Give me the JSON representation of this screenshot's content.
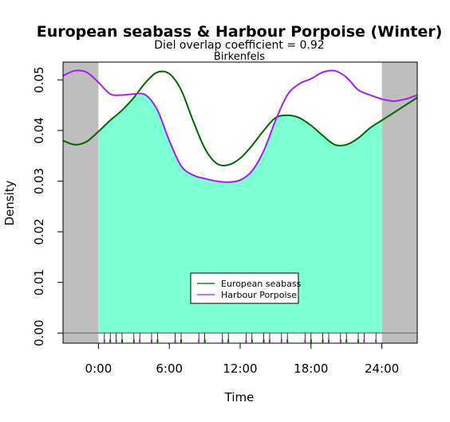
{
  "chart_data": {
    "type": "line",
    "title": "European seabass & Harbour Porpoise (Winter)",
    "subtitle": "Diel overlap coefficient =  0.92",
    "location": "Birkenfels",
    "xlabel": "Time",
    "ylabel": "Density",
    "xlim": [
      -3,
      27
    ],
    "ylim": [
      -0.002,
      0.0535
    ],
    "x_ticks": [
      {
        "value": 0,
        "label": "0:00"
      },
      {
        "value": 6,
        "label": "6:00"
      },
      {
        "value": 12,
        "label": "12:00"
      },
      {
        "value": 18,
        "label": "18:00"
      },
      {
        "value": 24,
        "label": "24:00"
      }
    ],
    "y_ticks": [
      {
        "value": 0.0,
        "label": "0.00"
      },
      {
        "value": 0.01,
        "label": "0.01"
      },
      {
        "value": 0.02,
        "label": "0.02"
      },
      {
        "value": 0.03,
        "label": "0.03"
      },
      {
        "value": 0.04,
        "label": "0.04"
      },
      {
        "value": 0.05,
        "label": "0.05"
      }
    ],
    "grid": false,
    "legend_position": "bottom-center",
    "shaded_night": [
      [
        -3,
        0
      ],
      [
        24,
        27
      ]
    ],
    "x": [
      -3,
      -2,
      -1,
      0,
      1,
      2,
      3,
      4,
      5,
      6,
      7,
      8,
      9,
      10,
      11,
      12,
      13,
      14,
      15,
      16,
      17,
      18,
      19,
      20,
      21,
      22,
      23,
      24,
      25,
      26,
      27
    ],
    "series": [
      {
        "name": "European seabass",
        "color": "#006400",
        "values": [
          0.038,
          0.0372,
          0.0378,
          0.0398,
          0.042,
          0.044,
          0.0465,
          0.0495,
          0.0515,
          0.0512,
          0.048,
          0.042,
          0.0365,
          0.0335,
          0.0332,
          0.0345,
          0.037,
          0.04,
          0.0425,
          0.043,
          0.0425,
          0.041,
          0.039,
          0.0372,
          0.0372,
          0.0385,
          0.0405,
          0.042,
          0.0435,
          0.045,
          0.0465
        ]
      },
      {
        "name": "Harbour Porpoise",
        "color": "#a020f0",
        "values": [
          0.0508,
          0.0518,
          0.0515,
          0.0495,
          0.0472,
          0.047,
          0.0472,
          0.047,
          0.044,
          0.038,
          0.033,
          0.0312,
          0.0305,
          0.03,
          0.0298,
          0.0302,
          0.032,
          0.036,
          0.042,
          0.047,
          0.0492,
          0.0502,
          0.0515,
          0.0518,
          0.0505,
          0.048,
          0.047,
          0.0462,
          0.0458,
          0.0462,
          0.047
        ]
      }
    ],
    "rug": {
      "European seabass": [
        1,
        2,
        3,
        5,
        7,
        9,
        11,
        13,
        14,
        16,
        18,
        19,
        21,
        22
      ],
      "Harbour Porpoise": [
        0.5,
        1.5,
        3.5,
        4.5,
        6.5,
        8.5,
        10.5,
        12.5,
        14.5,
        15.5,
        17.5,
        19.5,
        20.5,
        22.5,
        23.5
      ]
    },
    "overlap_color": "#7fffd4",
    "night_color": "#bebebe"
  }
}
